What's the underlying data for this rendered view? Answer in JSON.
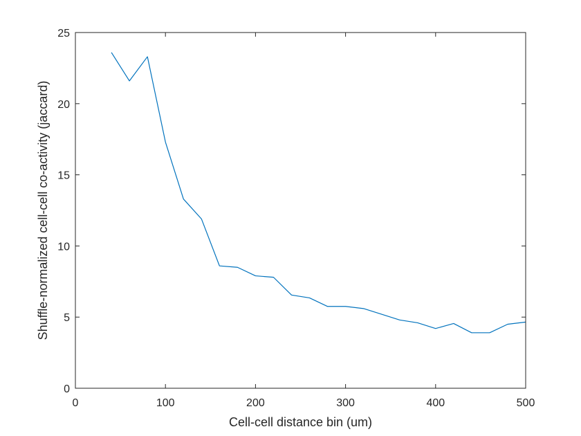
{
  "chart_data": {
    "type": "line",
    "title": "",
    "xlabel": "Cell-cell distance bin (um)",
    "ylabel": "Shuffle-normalized cell-cell co-activity (jaccard)",
    "xlim": [
      0,
      500
    ],
    "ylim": [
      0,
      25
    ],
    "xticks": [
      0,
      100,
      200,
      300,
      400,
      500
    ],
    "yticks": [
      0,
      5,
      10,
      15,
      20,
      25
    ],
    "grid": false,
    "legend": "none",
    "series": [
      {
        "color": "#0072bd",
        "x": [
          40,
          60,
          80,
          100,
          120,
          140,
          160,
          180,
          200,
          220,
          240,
          260,
          280,
          300,
          320,
          340,
          360,
          380,
          400,
          420,
          440,
          460,
          480,
          500
        ],
        "y": [
          23.6,
          21.6,
          23.3,
          17.3,
          13.3,
          11.9,
          8.6,
          8.5,
          7.9,
          7.8,
          6.55,
          6.35,
          5.75,
          5.75,
          5.6,
          5.2,
          4.8,
          4.6,
          4.2,
          4.55,
          3.9,
          3.9,
          4.5,
          4.65
        ]
      }
    ]
  }
}
